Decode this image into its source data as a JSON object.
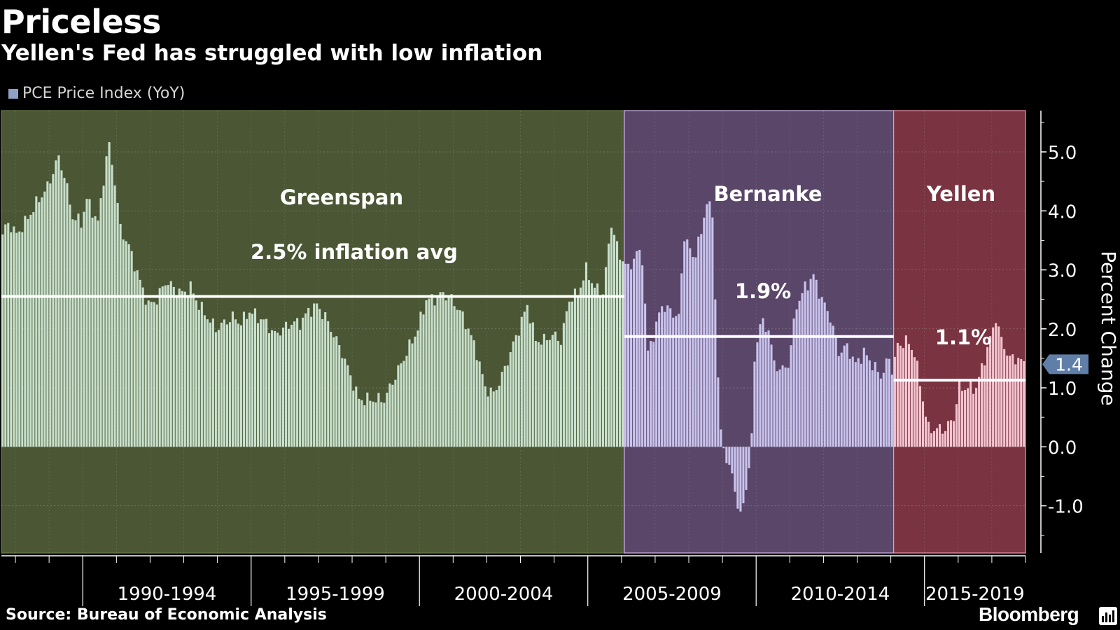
{
  "header": {
    "title": "Priceless",
    "subtitle": "Yellen's Fed has struggled with low inflation"
  },
  "footer": {
    "source": "Source: Bureau of Economic Analysis",
    "brand": "Bloomberg"
  },
  "colors": {
    "background": "#000000",
    "greenspan_band": "#4a5634",
    "bernanke_band": "#5a4668",
    "yellen_band": "#7a3340",
    "greenspan_bars": "#c8e0cc",
    "bernanke_bars": "#c9c4ee",
    "yellen_bars": "#f3c4cf",
    "legend_swatch": "#8ea0c6",
    "avg_line": "#ffffff"
  },
  "chart_data": {
    "type": "bar",
    "legend": [
      "PCE Price Index (YoY)"
    ],
    "ylabel": "Percent Change",
    "ylim": [
      -1.8,
      5.7
    ],
    "yticks": [
      "5.0",
      "4.0",
      "3.0",
      "2.0",
      "1.0",
      "0.0",
      "-1.0"
    ],
    "ytick_values": [
      5.0,
      4.0,
      3.0,
      2.0,
      1.0,
      0.0,
      -1.0
    ],
    "xticks": [
      "1990-1994",
      "1995-1999",
      "2000-2004",
      "2005-2009",
      "2010-2014",
      "2015-2019"
    ],
    "x_start": "1987-08",
    "x_end": "2017-12",
    "last_value_label": "1.4",
    "last_value": 1.4,
    "grid": true,
    "legend_placement": "top-left",
    "periods": [
      {
        "name": "Greenspan",
        "start": "1987-08",
        "end": "2006-01",
        "avg": 2.55,
        "avg_label": "2.5% inflation avg"
      },
      {
        "name": "Bernanke",
        "start": "2006-02",
        "end": "2014-01",
        "avg": 1.87,
        "avg_label": "1.9%"
      },
      {
        "name": "Yellen",
        "start": "2014-02",
        "end": "2017-12",
        "avg": 1.13,
        "avg_label": "1.1%"
      }
    ],
    "series": [
      {
        "name": "PCE Price Index (YoY)",
        "anchors": [
          [
            "1987-08",
            3.6
          ],
          [
            "1987-10",
            3.8
          ],
          [
            "1988-01",
            3.6
          ],
          [
            "1988-04",
            3.8
          ],
          [
            "1988-09",
            4.2
          ],
          [
            "1988-12",
            4.4
          ],
          [
            "1989-03",
            4.8
          ],
          [
            "1989-04",
            4.9
          ],
          [
            "1989-06",
            4.6
          ],
          [
            "1989-09",
            3.9
          ],
          [
            "1989-12",
            3.8
          ],
          [
            "1990-02",
            4.2
          ],
          [
            "1990-04",
            4.0
          ],
          [
            "1990-06",
            3.8
          ],
          [
            "1990-09",
            4.9
          ],
          [
            "1990-10",
            5.1
          ],
          [
            "1990-12",
            4.5
          ],
          [
            "1991-02",
            3.7
          ],
          [
            "1991-05",
            3.4
          ],
          [
            "1991-09",
            2.8
          ],
          [
            "1991-12",
            2.4
          ],
          [
            "1992-03",
            2.5
          ],
          [
            "1992-06",
            2.8
          ],
          [
            "1992-09",
            2.7
          ],
          [
            "1992-12",
            2.6
          ],
          [
            "1993-03",
            2.7
          ],
          [
            "1993-06",
            2.4
          ],
          [
            "1993-09",
            2.2
          ],
          [
            "1993-12",
            2.0
          ],
          [
            "1994-03",
            2.1
          ],
          [
            "1994-06",
            2.2
          ],
          [
            "1994-09",
            2.1
          ],
          [
            "1994-12",
            2.3
          ],
          [
            "1995-03",
            2.2
          ],
          [
            "1995-06",
            2.1
          ],
          [
            "1995-09",
            1.9
          ],
          [
            "1995-12",
            2.0
          ],
          [
            "1996-03",
            2.1
          ],
          [
            "1996-06",
            2.1
          ],
          [
            "1996-09",
            2.3
          ],
          [
            "1996-12",
            2.4
          ],
          [
            "1997-03",
            2.2
          ],
          [
            "1997-06",
            1.9
          ],
          [
            "1997-09",
            1.6
          ],
          [
            "1997-12",
            1.2
          ],
          [
            "1998-03",
            0.8
          ],
          [
            "1998-06",
            0.8
          ],
          [
            "1998-09",
            0.8
          ],
          [
            "1998-12",
            0.8
          ],
          [
            "1999-03",
            1.1
          ],
          [
            "1999-06",
            1.4
          ],
          [
            "1999-09",
            1.7
          ],
          [
            "1999-12",
            2.0
          ],
          [
            "2000-03",
            2.5
          ],
          [
            "2000-06",
            2.5
          ],
          [
            "2000-09",
            2.6
          ],
          [
            "2000-12",
            2.5
          ],
          [
            "2001-03",
            2.3
          ],
          [
            "2001-06",
            2.0
          ],
          [
            "2001-09",
            1.6
          ],
          [
            "2001-12",
            1.0
          ],
          [
            "2002-03",
            0.9
          ],
          [
            "2002-06",
            1.2
          ],
          [
            "2002-09",
            1.6
          ],
          [
            "2002-12",
            2.0
          ],
          [
            "2003-03",
            2.4
          ],
          [
            "2003-06",
            1.8
          ],
          [
            "2003-09",
            1.8
          ],
          [
            "2003-12",
            1.9
          ],
          [
            "2004-03",
            1.8
          ],
          [
            "2004-06",
            2.5
          ],
          [
            "2004-09",
            2.6
          ],
          [
            "2004-12",
            3.0
          ],
          [
            "2005-03",
            2.7
          ],
          [
            "2005-06",
            2.6
          ],
          [
            "2005-09",
            3.8
          ],
          [
            "2005-12",
            3.2
          ],
          [
            "2006-01",
            3.2
          ],
          [
            "2006-03",
            3.0
          ],
          [
            "2006-06",
            3.3
          ],
          [
            "2006-08",
            3.2
          ],
          [
            "2006-10",
            1.6
          ],
          [
            "2006-12",
            1.9
          ],
          [
            "2007-03",
            2.4
          ],
          [
            "2007-06",
            2.3
          ],
          [
            "2007-09",
            2.2
          ],
          [
            "2007-11",
            3.6
          ],
          [
            "2008-02",
            3.2
          ],
          [
            "2008-05",
            3.6
          ],
          [
            "2008-07",
            4.2
          ],
          [
            "2008-09",
            3.9
          ],
          [
            "2008-11",
            1.2
          ],
          [
            "2008-12",
            0.2
          ],
          [
            "2009-02",
            -0.2
          ],
          [
            "2009-04",
            -0.5
          ],
          [
            "2009-07",
            -1.2
          ],
          [
            "2009-09",
            -0.7
          ],
          [
            "2009-11",
            0.1
          ],
          [
            "2009-12",
            1.5
          ],
          [
            "2010-02",
            2.1
          ],
          [
            "2010-05",
            2.0
          ],
          [
            "2010-07",
            1.4
          ],
          [
            "2010-10",
            1.3
          ],
          [
            "2010-12",
            1.4
          ],
          [
            "2011-03",
            2.4
          ],
          [
            "2011-06",
            2.7
          ],
          [
            "2011-09",
            2.9
          ],
          [
            "2011-12",
            2.5
          ],
          [
            "2012-03",
            2.2
          ],
          [
            "2012-06",
            1.6
          ],
          [
            "2012-09",
            1.7
          ],
          [
            "2012-12",
            1.4
          ],
          [
            "2013-03",
            1.6
          ],
          [
            "2013-06",
            1.4
          ],
          [
            "2013-09",
            1.2
          ],
          [
            "2013-12",
            1.5
          ],
          [
            "2014-01",
            1.3
          ],
          [
            "2014-03",
            1.7
          ],
          [
            "2014-06",
            1.8
          ],
          [
            "2014-09",
            1.6
          ],
          [
            "2014-12",
            0.8
          ],
          [
            "2015-02",
            0.3
          ],
          [
            "2015-05",
            0.3
          ],
          [
            "2015-08",
            0.3
          ],
          [
            "2015-11",
            0.5
          ],
          [
            "2016-01",
            1.0
          ],
          [
            "2016-04",
            1.0
          ],
          [
            "2016-07",
            1.0
          ],
          [
            "2016-10",
            1.5
          ],
          [
            "2017-01",
            2.0
          ],
          [
            "2017-02",
            2.2
          ],
          [
            "2017-04",
            1.8
          ],
          [
            "2017-07",
            1.5
          ],
          [
            "2017-10",
            1.5
          ],
          [
            "2017-12",
            1.4
          ]
        ]
      }
    ]
  }
}
